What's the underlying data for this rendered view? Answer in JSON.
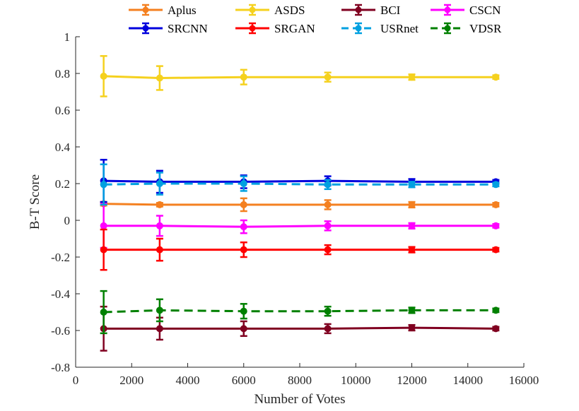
{
  "chart_data": {
    "type": "line",
    "title": "",
    "xlabel": "Number of Votes",
    "ylabel": "B-T Score",
    "xlim": [
      0,
      16000
    ],
    "ylim": [
      -0.8,
      1
    ],
    "x_ticks": [
      0,
      2000,
      4000,
      6000,
      8000,
      10000,
      12000,
      14000,
      16000
    ],
    "x_tick_labels": [
      "0",
      "2000",
      "4000",
      "6000",
      "8000",
      "10000",
      "12000",
      "14000",
      "16000"
    ],
    "y_ticks": [
      -0.8,
      -0.6,
      -0.4,
      -0.2,
      0,
      0.2,
      0.4,
      0.6,
      0.8,
      1
    ],
    "y_tick_labels": [
      "-0.8",
      "-0.6",
      "-0.4",
      "-0.2",
      "0",
      "0.2",
      "0.4",
      "0.6",
      "0.8",
      "1"
    ],
    "grid": false,
    "legend_position": "top",
    "x": [
      1000,
      3000,
      6000,
      9000,
      12000,
      15000
    ],
    "series": [
      {
        "name": "Aplus",
        "color": "#F48020",
        "dash": "solid",
        "values": [
          0.09,
          0.085,
          0.085,
          0.085,
          0.085,
          0.085
        ],
        "errors": [
          0.01,
          0.01,
          0.035,
          0.025,
          0.015,
          0.01
        ]
      },
      {
        "name": "ASDS",
        "color": "#F5D11E",
        "dash": "solid",
        "values": [
          0.785,
          0.775,
          0.78,
          0.78,
          0.78,
          0.78
        ],
        "errors": [
          0.11,
          0.065,
          0.04,
          0.025,
          0.015,
          0.01
        ]
      },
      {
        "name": "BCI",
        "color": "#800020",
        "dash": "solid",
        "values": [
          -0.59,
          -0.59,
          -0.59,
          -0.59,
          -0.585,
          -0.59
        ],
        "errors": [
          0.12,
          0.06,
          0.04,
          0.025,
          0.015,
          0.01
        ]
      },
      {
        "name": "CSCN",
        "color": "#FF00FF",
        "dash": "solid",
        "values": [
          -0.03,
          -0.03,
          -0.035,
          -0.03,
          -0.03,
          -0.03
        ],
        "errors": [
          0.12,
          0.055,
          0.035,
          0.025,
          0.015,
          0.01
        ]
      },
      {
        "name": "SRCNN",
        "color": "#0000DD",
        "dash": "solid",
        "values": [
          0.215,
          0.21,
          0.21,
          0.215,
          0.21,
          0.21
        ],
        "errors": [
          0.115,
          0.06,
          0.035,
          0.025,
          0.015,
          0.01
        ]
      },
      {
        "name": "SRGAN",
        "color": "#FF0000",
        "dash": "solid",
        "values": [
          -0.16,
          -0.16,
          -0.16,
          -0.16,
          -0.16,
          -0.16
        ],
        "errors": [
          0.11,
          0.06,
          0.04,
          0.025,
          0.015,
          0.01
        ]
      },
      {
        "name": "USRnet",
        "color": "#00A0E0",
        "dash": "dashed",
        "values": [
          0.195,
          0.2,
          0.2,
          0.195,
          0.195,
          0.195
        ],
        "errors": [
          0.11,
          0.06,
          0.04,
          0.025,
          0.015,
          0.01
        ]
      },
      {
        "name": "VDSR",
        "color": "#008000",
        "dash": "dashed",
        "values": [
          -0.5,
          -0.49,
          -0.495,
          -0.495,
          -0.49,
          -0.49
        ],
        "errors": [
          0.115,
          0.06,
          0.04,
          0.025,
          0.015,
          0.01
        ]
      }
    ]
  }
}
